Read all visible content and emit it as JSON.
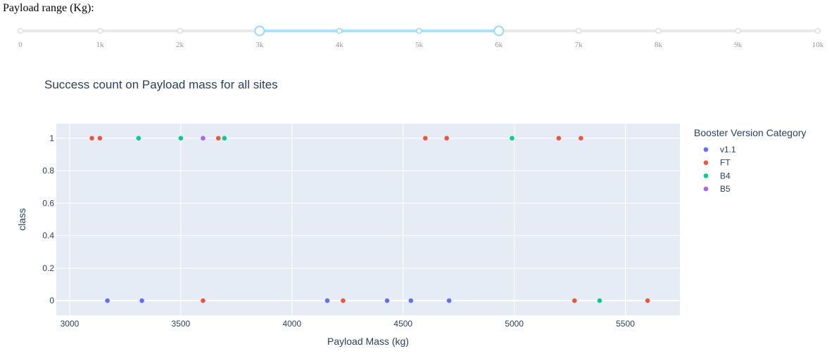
{
  "slider": {
    "label": "Payload range (Kg):",
    "min": 0,
    "max": 10000,
    "step_marks": [
      0,
      1000,
      2000,
      3000,
      4000,
      5000,
      6000,
      7000,
      8000,
      9000,
      10000
    ],
    "mark_labels": [
      "0",
      "1k",
      "2k",
      "3k",
      "4k",
      "5k",
      "6k",
      "7k",
      "8k",
      "9k",
      "10k"
    ],
    "selected_range": [
      3000,
      6000
    ],
    "colors": {
      "track": "#e9e9e9",
      "active": "#abe2fb",
      "handle": "#96dbfa"
    }
  },
  "chart_data": {
    "type": "scatter",
    "title": "Success count on Payload mass for all sites",
    "xlabel": "Payload Mass (kg)",
    "ylabel": "class",
    "xlim": [
      2940,
      5745
    ],
    "ylim": [
      -0.09,
      1.09
    ],
    "x_ticks": [
      3000,
      3500,
      4000,
      4500,
      5000,
      5500
    ],
    "x_tick_labels": [
      "3000",
      "3500",
      "4000",
      "4500",
      "5000",
      "5500"
    ],
    "y_ticks": [
      0,
      0.2,
      0.4,
      0.6,
      0.8,
      1
    ],
    "y_tick_labels": [
      "0",
      "0.2",
      "0.4",
      "0.6",
      "0.8",
      "1"
    ],
    "grid": true,
    "legend_title": "Booster Version Category",
    "legend_position": "right",
    "series": [
      {
        "name": "v1.1",
        "color": "#636efa",
        "x": [
          3170,
          3325,
          4159,
          4428,
          4535,
          4707
        ],
        "y": [
          0,
          0,
          0,
          0,
          0,
          0
        ]
      },
      {
        "name": "FT",
        "color": "#ef553b",
        "x": [
          3100,
          3136,
          3600,
          3669,
          4230,
          4600,
          4696,
          5200,
          5300,
          5271,
          5600
        ],
        "y": [
          1,
          1,
          0,
          1,
          0,
          1,
          1,
          1,
          1,
          0,
          0
        ]
      },
      {
        "name": "B4",
        "color": "#00cc96",
        "x": [
          3310,
          3500,
          3696,
          4990,
          5384
        ],
        "y": [
          1,
          1,
          1,
          1,
          0
        ]
      },
      {
        "name": "B5",
        "color": "#ab63fa",
        "x": [
          3600
        ],
        "y": [
          1
        ]
      }
    ]
  }
}
